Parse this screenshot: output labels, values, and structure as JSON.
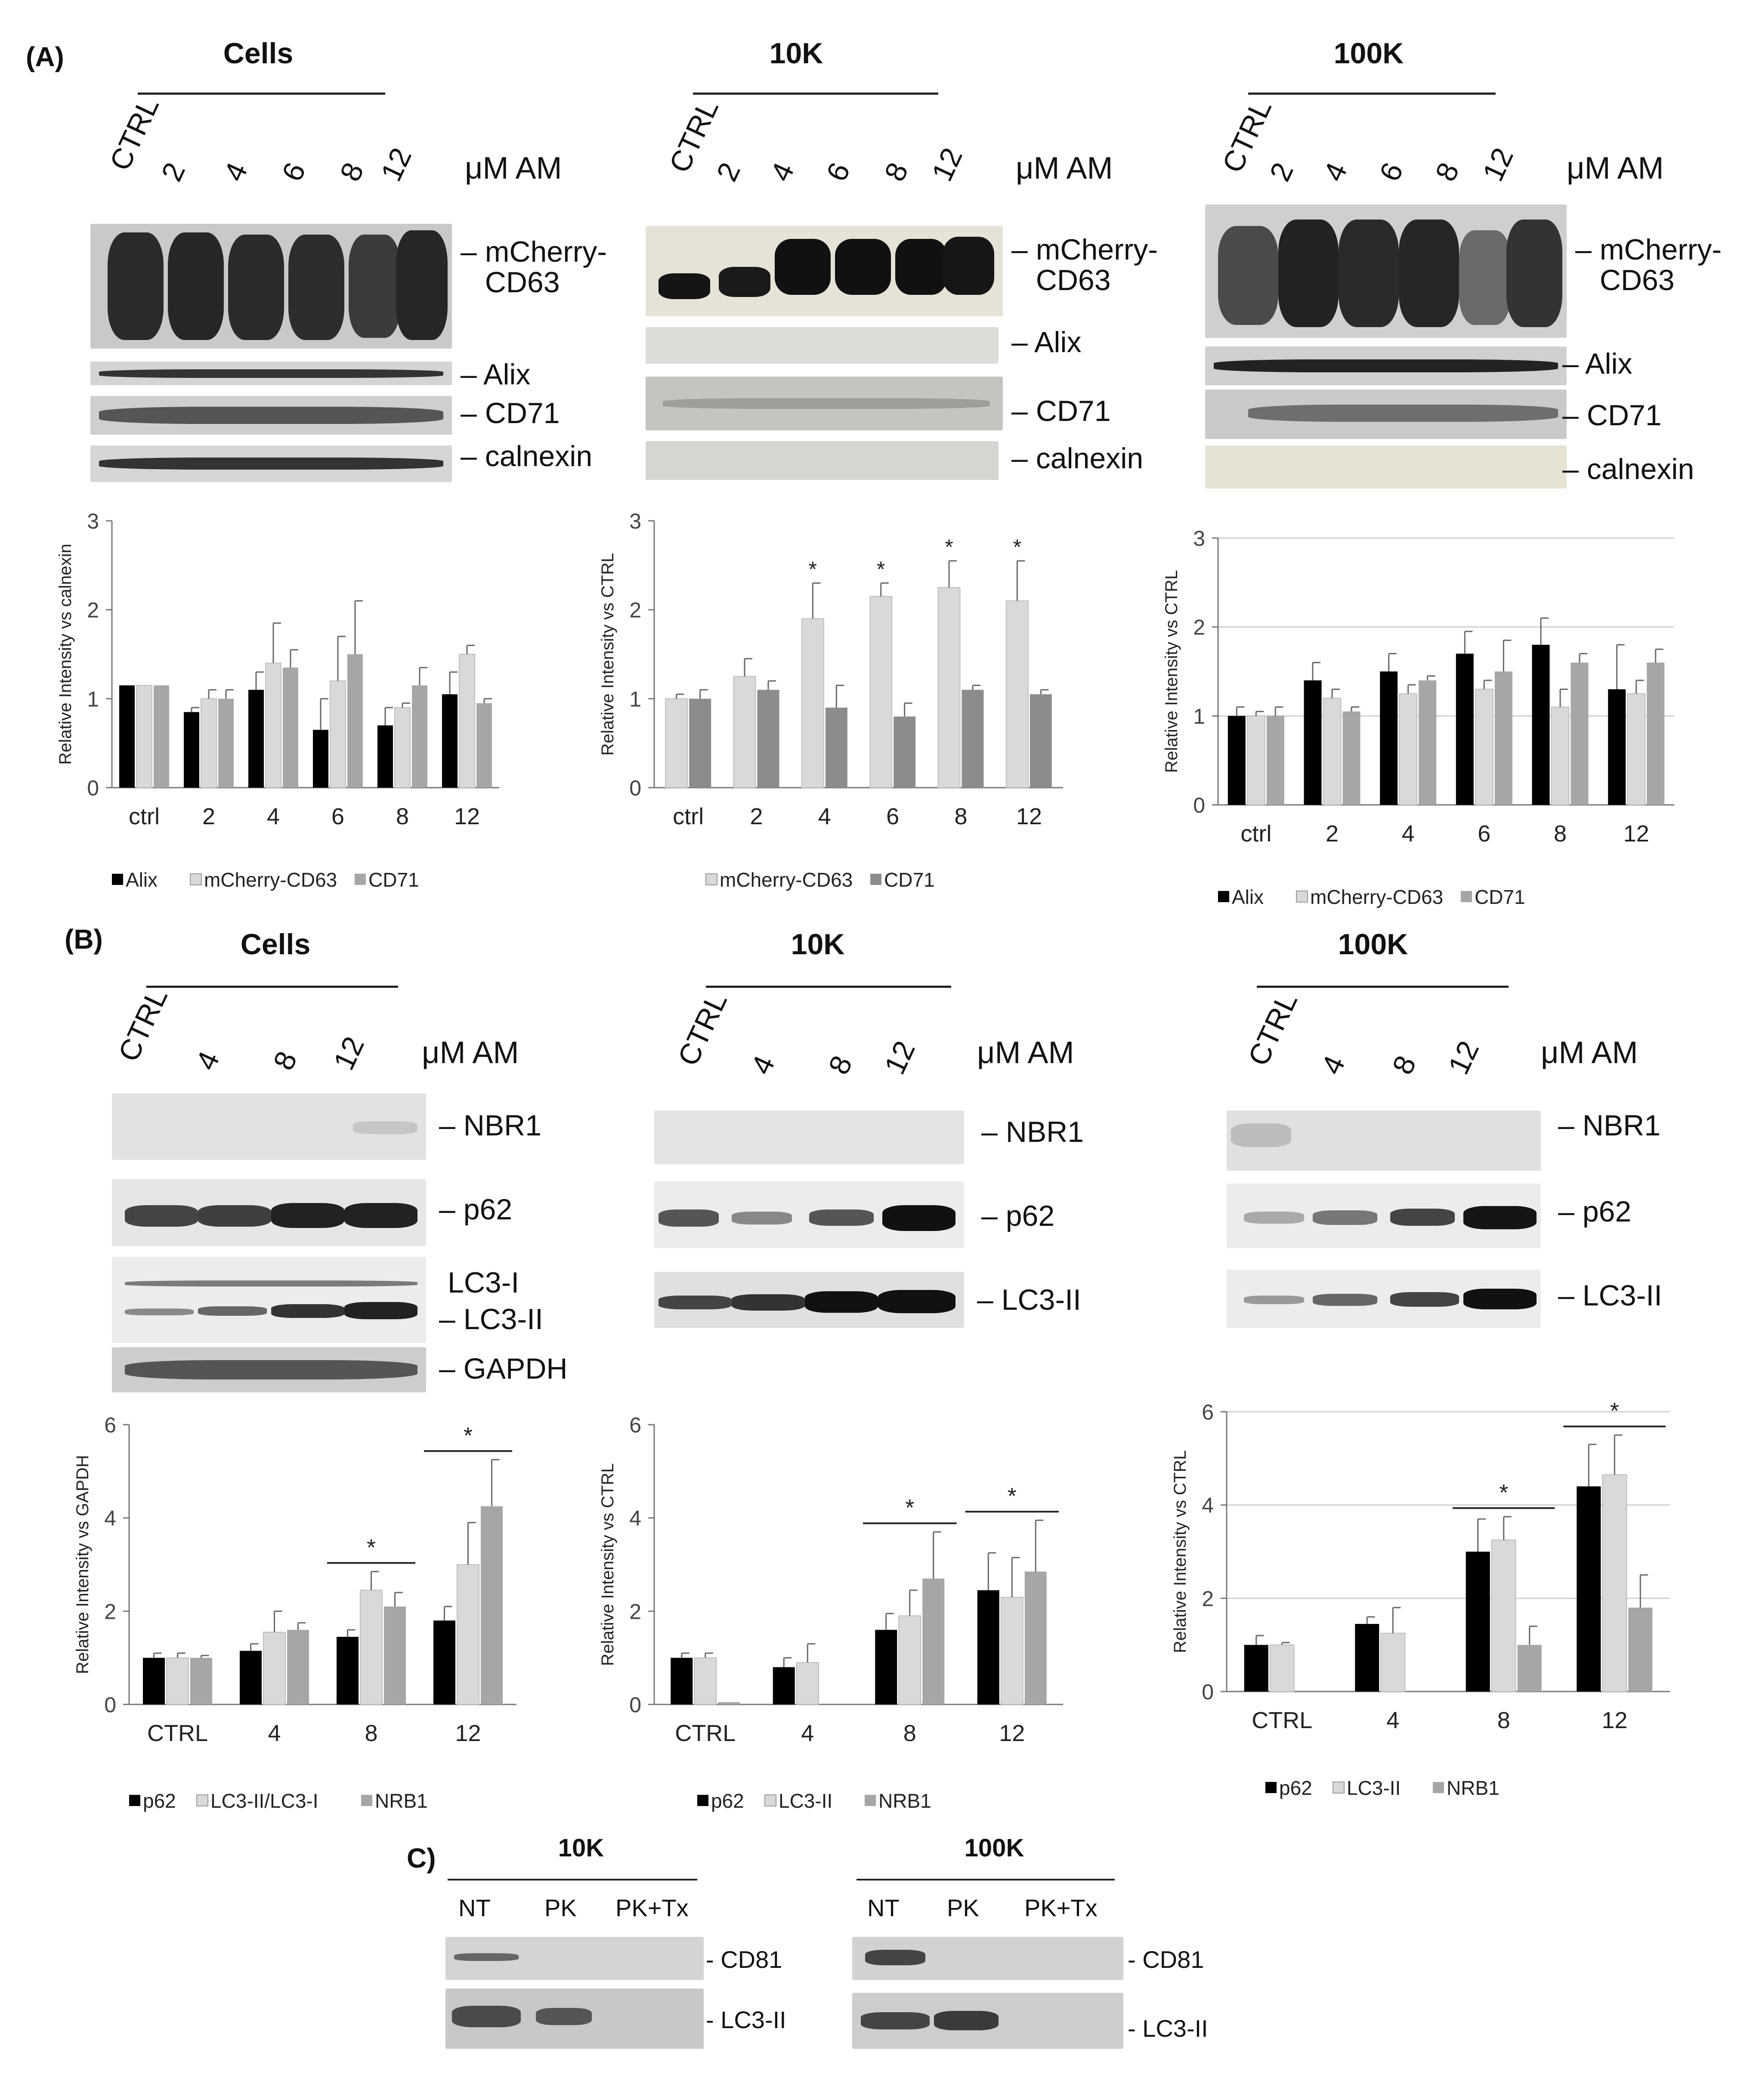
{
  "panel_labels": {
    "A": "(A)",
    "B": "(B)",
    "C": "C)"
  },
  "unit": "μM AM",
  "blots_A": [
    {
      "title": "Cells",
      "lanes": [
        "CTRL",
        "2",
        "4",
        "6",
        "8",
        "12"
      ],
      "tags": [
        "mCherry-\nCD63",
        "Alix",
        "CD71",
        "calnexin"
      ]
    },
    {
      "title": "10K",
      "lanes": [
        "CTRL",
        "2",
        "4",
        "6",
        "8",
        "12"
      ],
      "tags": [
        "mCherry-\nCD63",
        "Alix",
        "CD71",
        "calnexin"
      ]
    },
    {
      "title": "100K",
      "lanes": [
        "CTRL",
        "2",
        "4",
        "6",
        "8",
        "12"
      ],
      "tags": [
        "mCherry-\nCD63",
        "Alix",
        "CD71",
        "calnexin"
      ]
    }
  ],
  "blots_B": [
    {
      "title": "Cells",
      "lanes": [
        "CTRL",
        "4",
        "8",
        "12"
      ],
      "tags": [
        "NBR1",
        "p62",
        "LC3-I",
        "LC3-II",
        "GAPDH"
      ]
    },
    {
      "title": "10K",
      "lanes": [
        "CTRL",
        "4",
        "8",
        "12"
      ],
      "tags": [
        "NBR1",
        "p62",
        "LC3-II"
      ]
    },
    {
      "title": "100K",
      "lanes": [
        "CTRL",
        "4",
        "8",
        "12"
      ],
      "tags": [
        "NBR1",
        "p62",
        "LC3-II"
      ]
    }
  ],
  "blots_C": [
    {
      "title": "10K",
      "lanes": [
        "NT",
        "PK",
        "PK+Tx"
      ],
      "tags": [
        "CD81",
        "LC3-II"
      ]
    },
    {
      "title": "100K",
      "lanes": [
        "NT",
        "PK",
        "PK+Tx"
      ],
      "tags": [
        "CD81",
        "LC3-II"
      ]
    }
  ],
  "colors": {
    "black": "#000000",
    "light": "#d9d9d9",
    "mid": "#a6a6a6",
    "dark_mid": "#8c8c8c"
  },
  "chart_data": [
    {
      "type": "bar",
      "panel": "A-Cells",
      "ylabel": "Relative Intensity vs calnexin",
      "ylim": [
        0,
        3
      ],
      "yticks": [
        0,
        1,
        2,
        3
      ],
      "categories": [
        "ctrl",
        "2",
        "4",
        "6",
        "8",
        "12"
      ],
      "series": [
        {
          "name": "Alix",
          "color": "#000000",
          "values": [
            1.15,
            0.85,
            1.1,
            0.65,
            0.7,
            1.05
          ],
          "err": [
            0,
            0.05,
            0.2,
            0.35,
            0.2,
            0.25
          ]
        },
        {
          "name": "mCherry-CD63",
          "color": "#d9d9d9",
          "values": [
            1.15,
            1.0,
            1.4,
            1.2,
            0.9,
            1.5
          ],
          "err": [
            0,
            0.1,
            0.45,
            0.5,
            0.05,
            0.1
          ]
        },
        {
          "name": "CD71",
          "color": "#a6a6a6",
          "values": [
            1.15,
            1.0,
            1.35,
            1.5,
            1.15,
            0.95
          ],
          "err": [
            0,
            0.1,
            0.2,
            0.6,
            0.2,
            0.05
          ]
        }
      ],
      "stars": []
    },
    {
      "type": "bar",
      "panel": "A-10K",
      "ylabel": "Relative Intensity vs CTRL",
      "ylim": [
        0,
        3
      ],
      "yticks": [
        0,
        1,
        2,
        3
      ],
      "categories": [
        "ctrl",
        "2",
        "4",
        "6",
        "8",
        "12"
      ],
      "series": [
        {
          "name": "mCherry-CD63",
          "color": "#d9d9d9",
          "values": [
            1.0,
            1.25,
            1.9,
            2.15,
            2.25,
            2.1
          ],
          "err": [
            0.05,
            0.2,
            0.4,
            0.15,
            0.3,
            0.45
          ]
        },
        {
          "name": "CD71",
          "color": "#8c8c8c",
          "values": [
            1.0,
            1.1,
            0.9,
            0.8,
            1.1,
            1.05
          ],
          "err": [
            0.1,
            0.1,
            0.25,
            0.15,
            0.05,
            0.05
          ]
        }
      ],
      "stars": [
        "",
        "",
        "*",
        "*",
        "*",
        "*"
      ]
    },
    {
      "type": "bar",
      "panel": "A-100K",
      "ylabel": "Relative Intensity vs CTRL",
      "ylim": [
        0,
        3
      ],
      "yticks": [
        0,
        1,
        2,
        3
      ],
      "categories": [
        "ctrl",
        "2",
        "4",
        "6",
        "8",
        "12"
      ],
      "series": [
        {
          "name": "Alix",
          "color": "#000000",
          "values": [
            1.0,
            1.4,
            1.5,
            1.7,
            1.8,
            1.3
          ],
          "err": [
            0.1,
            0.2,
            0.2,
            0.25,
            0.3,
            0.5
          ]
        },
        {
          "name": "mCherry-CD63",
          "color": "#d9d9d9",
          "values": [
            1.0,
            1.2,
            1.25,
            1.3,
            1.1,
            1.25
          ],
          "err": [
            0.05,
            0.1,
            0.1,
            0.1,
            0.2,
            0.15
          ]
        },
        {
          "name": "CD71",
          "color": "#a6a6a6",
          "values": [
            1.0,
            1.05,
            1.4,
            1.5,
            1.6,
            1.6
          ],
          "err": [
            0.1,
            0.05,
            0.05,
            0.35,
            0.1,
            0.15
          ]
        }
      ],
      "stars": []
    },
    {
      "type": "bar",
      "panel": "B-Cells",
      "ylabel": "Relative Intensity vs GAPDH",
      "ylim": [
        0,
        6
      ],
      "yticks": [
        0,
        2,
        4,
        6
      ],
      "categories": [
        "CTRL",
        "4",
        "8",
        "12"
      ],
      "series": [
        {
          "name": "p62",
          "color": "#000000",
          "values": [
            1.0,
            1.15,
            1.45,
            1.8
          ],
          "err": [
            0.1,
            0.15,
            0.15,
            0.3
          ]
        },
        {
          "name": "LC3-II/LC3-I",
          "color": "#d9d9d9",
          "values": [
            1.0,
            1.55,
            2.45,
            3.0
          ],
          "err": [
            0.1,
            0.45,
            0.4,
            0.9
          ]
        },
        {
          "name": "NRB1",
          "color": "#a6a6a6",
          "values": [
            1.0,
            1.6,
            2.1,
            4.25
          ],
          "err": [
            0.05,
            0.15,
            0.3,
            1.0
          ]
        }
      ],
      "sig": [
        {
          "from": 2,
          "to": 2,
          "label": "*"
        },
        {
          "from": 3,
          "to": 3,
          "label": "*"
        }
      ]
    },
    {
      "type": "bar",
      "panel": "B-10K",
      "ylabel": "Relative Intensity vs CTRL",
      "ylim": [
        0,
        6
      ],
      "yticks": [
        0,
        2,
        4,
        6
      ],
      "categories": [
        "CTRL",
        "4",
        "8",
        "12"
      ],
      "series": [
        {
          "name": "p62",
          "color": "#000000",
          "values": [
            1.0,
            0.8,
            1.6,
            2.45
          ],
          "err": [
            0.1,
            0.2,
            0.35,
            0.8
          ]
        },
        {
          "name": "LC3-II",
          "color": "#d9d9d9",
          "values": [
            1.0,
            0.9,
            1.9,
            2.3
          ],
          "err": [
            0.1,
            0.4,
            0.55,
            0.85
          ]
        },
        {
          "name": "NRB1",
          "color": "#a6a6a6",
          "values": [
            0.05,
            0,
            2.7,
            2.85
          ],
          "err": [
            0,
            0,
            1.0,
            1.1
          ]
        }
      ],
      "sig": [
        {
          "from": 2,
          "to": 2,
          "label": "*"
        },
        {
          "from": 3,
          "to": 3,
          "label": "*"
        }
      ]
    },
    {
      "type": "bar",
      "panel": "B-100K",
      "ylabel": "Relative Intensity vs CTRL",
      "ylim": [
        0,
        6
      ],
      "yticks": [
        0,
        2,
        4,
        6
      ],
      "categories": [
        "CTRL",
        "4",
        "8",
        "12"
      ],
      "series": [
        {
          "name": "p62",
          "color": "#000000",
          "values": [
            1.0,
            1.45,
            3.0,
            4.4
          ],
          "err": [
            0.2,
            0.15,
            0.7,
            0.9
          ]
        },
        {
          "name": "LC3-II",
          "color": "#d9d9d9",
          "values": [
            1.0,
            1.25,
            3.25,
            4.65
          ],
          "err": [
            0.05,
            0.55,
            0.5,
            0.85
          ]
        },
        {
          "name": "NRB1",
          "color": "#a6a6a6",
          "values": [
            0,
            0,
            1.0,
            1.8
          ],
          "err": [
            0,
            0,
            0.4,
            0.7
          ]
        }
      ],
      "sig": [
        {
          "from": 2,
          "to": 2,
          "label": "*"
        },
        {
          "from": 3,
          "to": 3,
          "label": "*"
        }
      ]
    }
  ]
}
